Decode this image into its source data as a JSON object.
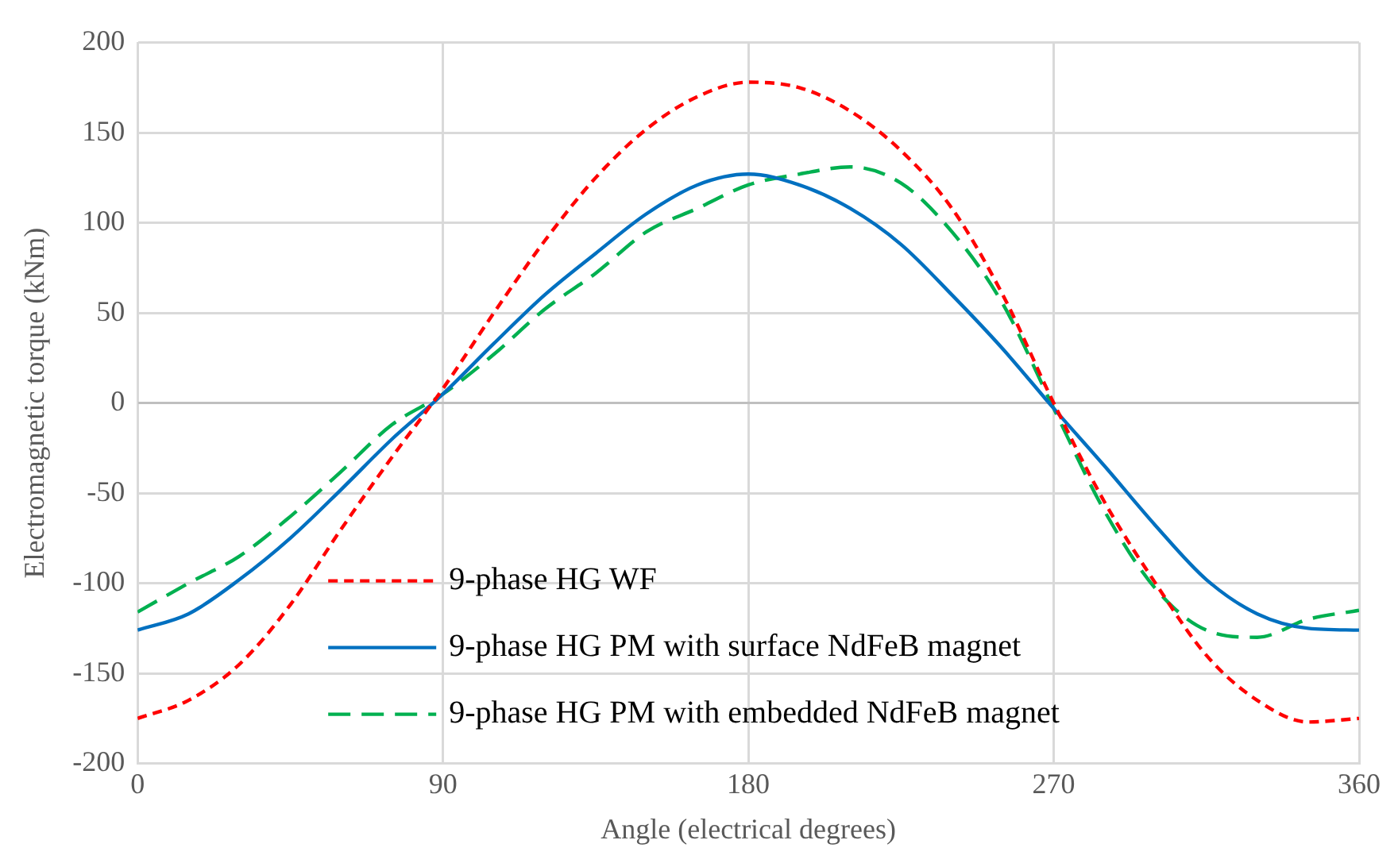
{
  "chart_data": {
    "type": "line",
    "xlabel": "Angle (electrical degrees)",
    "ylabel": "Electromagnetic torque (kNm)",
    "x": [
      0,
      15,
      30,
      45,
      60,
      75,
      90,
      105,
      120,
      135,
      150,
      165,
      180,
      195,
      210,
      225,
      240,
      255,
      270,
      285,
      300,
      315,
      330,
      345,
      360
    ],
    "xlim": [
      0,
      360
    ],
    "xticks": [
      0,
      90,
      180,
      270,
      360
    ],
    "ylim": [
      -200,
      200
    ],
    "yticks": [
      -200,
      -150,
      -100,
      -50,
      0,
      50,
      100,
      150,
      200
    ],
    "grid": true,
    "legend": "bottom",
    "marker": "none",
    "series": [
      {
        "name": "9-phase HG WF",
        "color": "#ff0000",
        "line_style": "dotted",
        "values": [
          -175,
          -165,
          -145,
          -112,
          -70,
          -30,
          8,
          50,
          90,
          125,
          152,
          170,
          178,
          175,
          162,
          140,
          108,
          60,
          0,
          -55,
          -100,
          -140,
          -165,
          -177,
          -175
        ]
      },
      {
        "name": "9-phase HG PM with surface NdFeB magnet",
        "color": "#0070c0",
        "line_style": "solid",
        "values": [
          -126,
          -117,
          -98,
          -75,
          -48,
          -20,
          5,
          33,
          60,
          83,
          105,
          121,
          127,
          121,
          108,
          88,
          60,
          30,
          -3,
          -35,
          -68,
          -98,
          -117,
          -125,
          -126
        ]
      },
      {
        "name": "9-phase HG PM with embedded NdFeB magnet",
        "color": "#00b050",
        "line_style": "dashed",
        "values": [
          -116,
          -100,
          -85,
          -63,
          -38,
          -12,
          5,
          27,
          52,
          72,
          95,
          108,
          121,
          127,
          131,
          122,
          95,
          55,
          -3,
          -60,
          -103,
          -126,
          -130,
          -120,
          -115
        ]
      }
    ]
  }
}
